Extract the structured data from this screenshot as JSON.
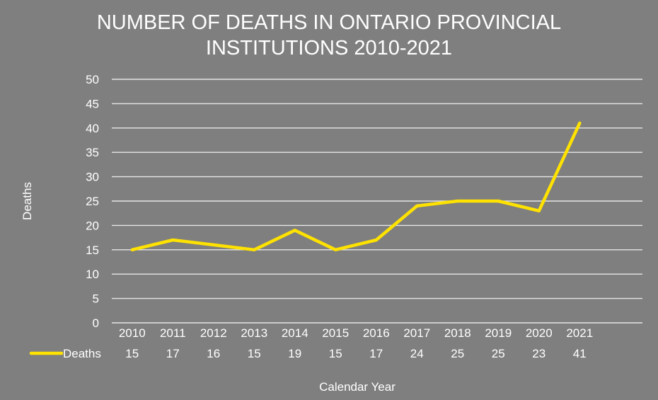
{
  "chart_data": {
    "type": "line",
    "title_lines": [
      "NUMBER OF DEATHS IN ONTARIO PROVINCIAL",
      "INSTITUTIONS 2010-2021"
    ],
    "xlabel": "Calendar Year",
    "ylabel": "Deaths",
    "ylim": [
      0,
      50
    ],
    "yticks": [
      0,
      5,
      10,
      15,
      20,
      25,
      30,
      35,
      40,
      45,
      50
    ],
    "grid": true,
    "legend": "data-table-left",
    "categories": [
      "2010",
      "2011",
      "2012",
      "2013",
      "2014",
      "2015",
      "2016",
      "2017",
      "2018",
      "2019",
      "2020",
      "2021"
    ],
    "series": [
      {
        "name": "Deaths",
        "color": "#ffe200",
        "values": [
          15,
          17,
          16,
          15,
          19,
          15,
          17,
          24,
          25,
          25,
          23,
          41
        ]
      }
    ]
  }
}
